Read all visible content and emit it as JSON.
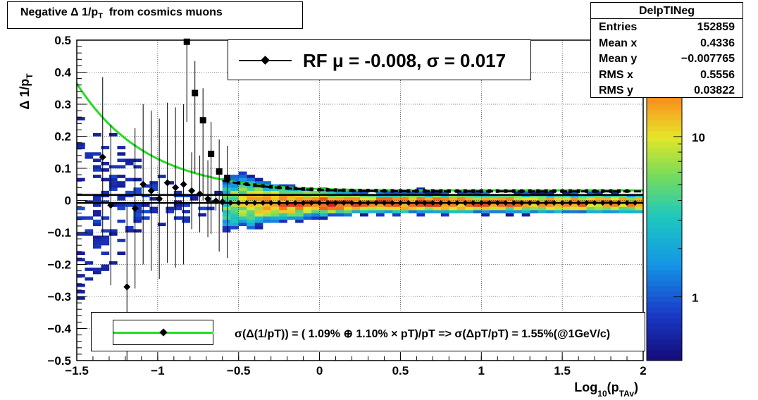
{
  "title": "Negative Δ 1/p_T from cosmics muons",
  "title_parts": {
    "main": "Negative Δ 1/p",
    "sub": "T",
    "rest": "  from cosmics muons"
  },
  "stats": {
    "name": "DelpTINeg",
    "rows": [
      {
        "label": "Entries",
        "value": "152859"
      },
      {
        "label": "Mean x",
        "value": "0.4336"
      },
      {
        "label": "Mean y",
        "value": "−0.007765"
      },
      {
        "label": "RMS x",
        "value": "0.5556"
      },
      {
        "label": "RMS y",
        "value": "0.03822"
      }
    ]
  },
  "fit_label": "RF μ = -0.008, σ =   0.017",
  "legend_label": "σ(Δ(1/pT)) = ( 1.09% ⊕  1.10% × pT)/pT => σ(ΔpT/pT) =  1.55%(@1GeV/c)",
  "colors": {
    "fit_curve": "#22dd22",
    "markers": "#000000",
    "frame": "#000000"
  },
  "chart_data": {
    "type": "heatmap",
    "title": "Negative Δ 1/p_T from cosmics muons",
    "xlabel": "Log10(pTAv)",
    "xlabel_parts": {
      "main": "Log",
      "sub1": "10",
      "mid": "(p",
      "sub2": "TAv",
      "end": ")"
    },
    "ylabel": "Δ 1/p_T",
    "ylabel_parts": {
      "main": "Δ 1/p",
      "sub": "T"
    },
    "xlim": [
      -1.5,
      2.0
    ],
    "ylim": [
      -0.5,
      0.5
    ],
    "x_ticks": [
      -1.5,
      -1,
      -0.5,
      0,
      0.5,
      1,
      1.5,
      2
    ],
    "x_tick_labels": [
      "−1.5",
      "−1",
      "−0.5",
      "0",
      "0.5",
      "1",
      "1.5",
      "2"
    ],
    "y_ticks": [
      -0.5,
      -0.4,
      -0.3,
      -0.2,
      -0.1,
      0,
      0.1,
      0.2,
      0.3,
      0.4,
      0.5
    ],
    "y_tick_labels": [
      "−0.5",
      "−0.4",
      "−0.3",
      "−0.2",
      "−0.1",
      "0",
      "0.1",
      "0.2",
      "0.3",
      "0.4",
      "0.5"
    ],
    "grid": true,
    "log_z": true,
    "z_tick_labels": [
      {
        "value": 1,
        "label": "1"
      },
      {
        "value": 10,
        "label": "10"
      }
    ],
    "z_range": [
      0.4,
      40
    ],
    "fit": {
      "mu": -0.008,
      "sigma": 0.017
    },
    "resolution_model": {
      "a": 0.0109,
      "b": 0.011
    },
    "mean_points": [
      {
        "x": -1.34,
        "y": 0.135
      },
      {
        "x": -1.29,
        "y": -0.015
      },
      {
        "x": -1.19,
        "y": -0.27
      },
      {
        "x": -1.14,
        "y": -0.025
      },
      {
        "x": -1.09,
        "y": 0.05
      },
      {
        "x": -1.04,
        "y": 0.03
      },
      {
        "x": -0.99,
        "y": 0.005
      },
      {
        "x": -0.94,
        "y": 0.055
      },
      {
        "x": -0.89,
        "y": 0.04
      },
      {
        "x": -0.84,
        "y": 0.05
      },
      {
        "x": -0.79,
        "y": 0.03
      },
      {
        "x": -0.74,
        "y": 0.02
      },
      {
        "x": -0.69,
        "y": 0.005
      },
      {
        "x": -0.64,
        "y": -0.002
      },
      {
        "x": -0.6,
        "y": -0.005
      }
    ],
    "mean_points_tail_range": {
      "x_from": -0.55,
      "x_to": 1.95,
      "y": -0.008
    },
    "sigma_points": [
      {
        "x": -0.82,
        "y": 0.495
      },
      {
        "x": -0.77,
        "y": 0.335
      },
      {
        "x": -0.72,
        "y": 0.25
      },
      {
        "x": -0.67,
        "y": 0.145
      },
      {
        "x": -0.62,
        "y": 0.09
      },
      {
        "x": -0.57,
        "y": 0.07
      }
    ]
  }
}
